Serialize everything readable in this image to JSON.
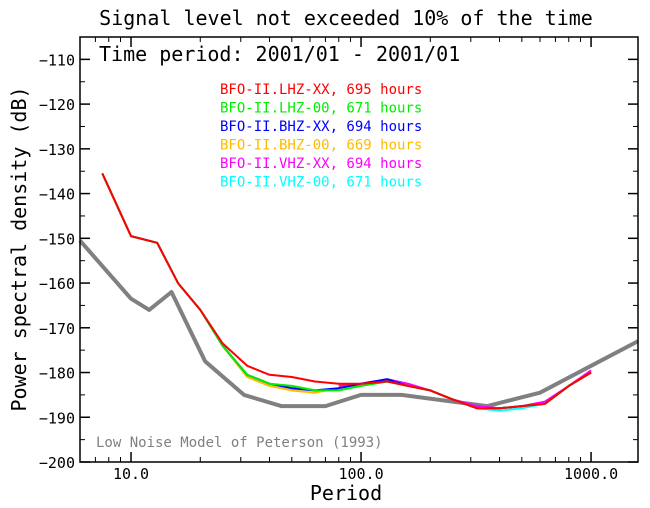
{
  "chart_data": {
    "type": "line",
    "title": "Signal level not exceeded 10% of the time",
    "subtitle": "Time period: 2001/01 - 2001/01",
    "xlabel": "Period",
    "ylabel": "Power spectral density (dB)",
    "x_scale": "log",
    "xlim": [
      6.0,
      1600.0
    ],
    "ylim": [
      -200,
      -105
    ],
    "x_ticks": [
      {
        "value": 10,
        "label": "10.0"
      },
      {
        "value": 100,
        "label": "100.0"
      },
      {
        "value": 1000,
        "label": "1000.0"
      }
    ],
    "y_ticks": [
      {
        "value": -110,
        "label": "−110"
      },
      {
        "value": -120,
        "label": "−120"
      },
      {
        "value": -130,
        "label": "−130"
      },
      {
        "value": -140,
        "label": "−140"
      },
      {
        "value": -150,
        "label": "−150"
      },
      {
        "value": -160,
        "label": "−160"
      },
      {
        "value": -170,
        "label": "−170"
      },
      {
        "value": -180,
        "label": "−180"
      },
      {
        "value": -190,
        "label": "−190"
      },
      {
        "value": -200,
        "label": "−200"
      }
    ],
    "legend_position": "top-center",
    "series": [
      {
        "name": "BFO-II.LHZ-XX, 695 hours",
        "color": "#ff0000",
        "x": [
          7.5,
          10,
          13,
          16,
          20,
          25,
          32,
          40,
          50,
          63,
          80,
          100,
          130,
          160,
          200,
          250,
          320,
          400,
          500,
          630,
          800,
          1000
        ],
        "y": [
          -135.5,
          -149.5,
          -151,
          -160,
          -166,
          -173.5,
          -178.5,
          -180.5,
          -181,
          -182,
          -182.5,
          -182.5,
          -182,
          -183,
          -184,
          -186,
          -188,
          -188,
          -187.5,
          -187,
          -183,
          -180
        ]
      },
      {
        "name": "BFO-II.LHZ-00, 671 hours",
        "color": "#00ee00",
        "x": [
          7.5,
          10,
          13,
          16,
          20,
          25,
          32,
          40,
          50,
          63,
          80,
          100,
          130,
          160,
          200,
          250,
          320,
          400,
          500,
          630,
          800,
          1000
        ],
        "y": [
          -135.5,
          -149.5,
          -151,
          -160,
          -166,
          -174,
          -180.5,
          -182.5,
          -183,
          -184,
          -184,
          -183,
          -182,
          -183,
          -184,
          -186,
          -188,
          -188,
          -187.5,
          -187,
          -183,
          -180
        ]
      },
      {
        "name": "BFO-II.BHZ-XX, 694 hours",
        "color": "#0000ff",
        "x": [
          7.5,
          10,
          13,
          16,
          20,
          25,
          32,
          40,
          50,
          63,
          80,
          100,
          130,
          160,
          200,
          250,
          320,
          400,
          500,
          630,
          800,
          1000
        ],
        "y": [
          -135.5,
          -149.5,
          -151,
          -160,
          -166,
          -174,
          -180.5,
          -182.5,
          -183.5,
          -184,
          -183.5,
          -182.5,
          -181.5,
          -183,
          -184,
          -186,
          -188,
          -188,
          -187.5,
          -187,
          -183,
          -180
        ]
      },
      {
        "name": "BFO-II.BHZ-00, 669 hours",
        "color": "#ffbb00",
        "x": [
          7.5,
          10,
          13,
          16,
          20,
          25,
          32,
          40,
          50,
          63,
          80,
          100,
          130,
          160,
          200,
          250,
          320,
          400,
          500,
          630,
          800,
          1000
        ],
        "y": [
          -135.5,
          -149.5,
          -151,
          -160,
          -166,
          -174,
          -181,
          -183,
          -184,
          -184.5,
          -183.5,
          -182.5,
          -182,
          -183,
          -184,
          -186,
          -188,
          -188,
          -187.5,
          -187,
          -183,
          -180
        ]
      },
      {
        "name": "BFO-II.VHZ-XX, 694 hours",
        "color": "#ff00ff",
        "x": [
          80,
          100,
          130,
          160,
          200,
          250,
          320,
          400,
          500,
          630,
          800,
          1000
        ],
        "y": [
          -183,
          -182.5,
          -181.5,
          -182.5,
          -184,
          -186,
          -187.5,
          -188,
          -187.5,
          -186.5,
          -183,
          -179.5
        ]
      },
      {
        "name": "BFO-II.VHZ-00, 671 hours",
        "color": "#00ffff",
        "x": [
          80,
          100,
          130,
          160,
          200,
          250,
          320,
          400,
          500,
          630,
          800,
          1000
        ],
        "y": [
          -183,
          -183,
          -182,
          -183,
          -184,
          -186,
          -188,
          -188.5,
          -188,
          -187,
          -183,
          -180
        ]
      }
    ],
    "reference": {
      "name": "Low Noise Model of Peterson (1993)",
      "color": "#808080",
      "x": [
        6.0,
        10,
        12,
        15,
        21,
        31,
        45,
        70,
        100,
        150,
        250,
        354,
        600,
        1000,
        1600
      ],
      "y": [
        -150.5,
        -163.5,
        -166,
        -162,
        -177.5,
        -185,
        -187.5,
        -187.5,
        -185,
        -185,
        -186.5,
        -187.5,
        -184.5,
        -178.5,
        -173
      ]
    }
  }
}
